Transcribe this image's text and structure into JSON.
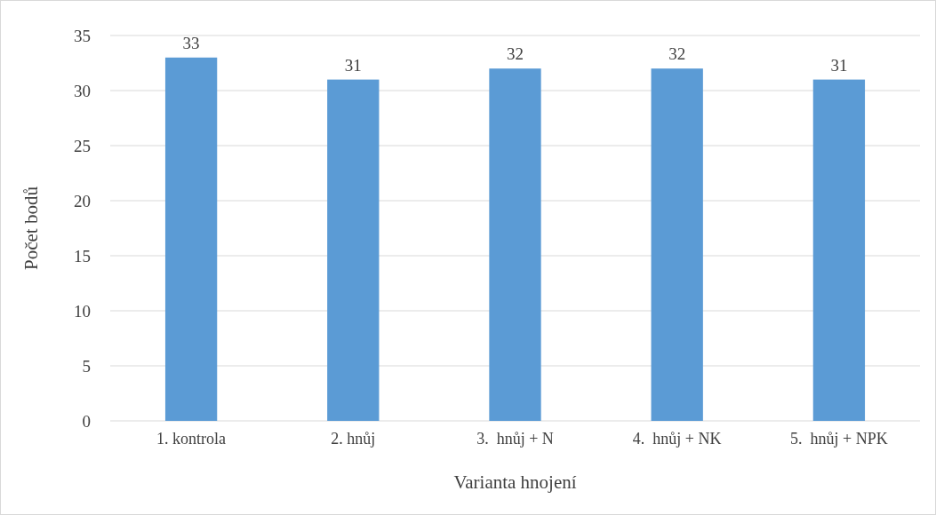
{
  "chart_data": {
    "type": "bar",
    "xlabel": "Varianta hnojení",
    "ylabel": "Počet bodů",
    "categories": [
      "1. kontrola",
      "2. hnůj",
      "3.  hnůj + N",
      "4.  hnůj + NK",
      "5.  hnůj + NPK"
    ],
    "values": [
      33,
      31,
      32,
      32,
      31
    ],
    "color": "#5b9bd5",
    "ylim": [
      0,
      35
    ],
    "yticks": [
      0,
      5,
      10,
      15,
      20,
      25,
      30,
      35
    ],
    "grid": "y",
    "data_labels": true
  }
}
